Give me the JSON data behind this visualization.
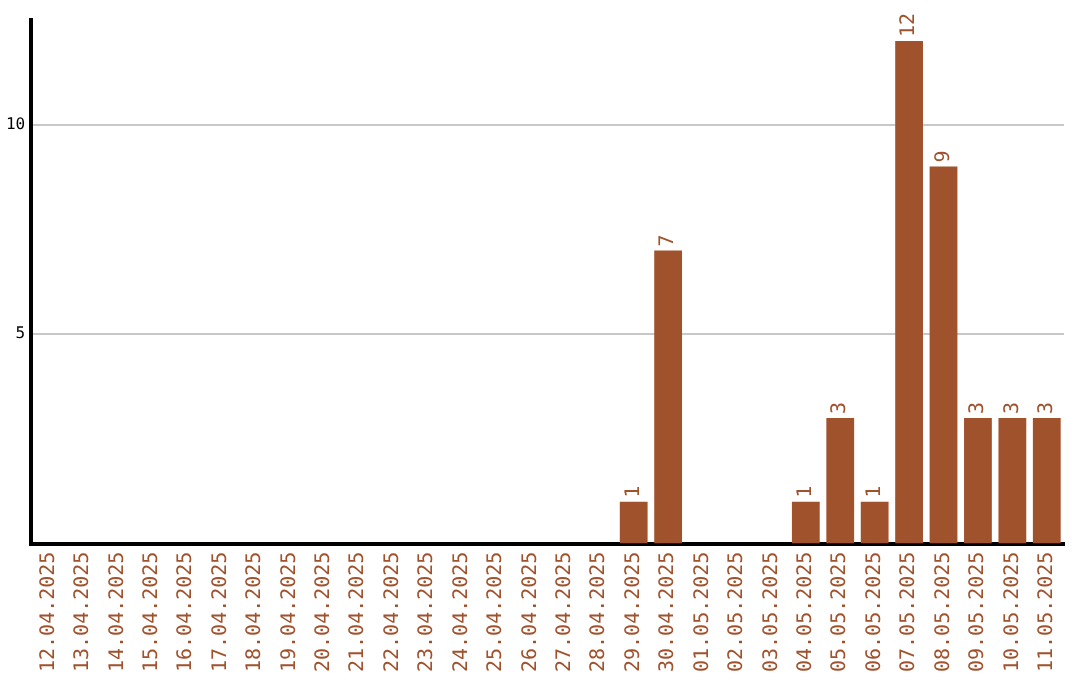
{
  "chart_data": {
    "type": "bar",
    "categories": [
      "12.04.2025",
      "13.04.2025",
      "14.04.2025",
      "15.04.2025",
      "16.04.2025",
      "17.04.2025",
      "18.04.2025",
      "19.04.2025",
      "20.04.2025",
      "21.04.2025",
      "22.04.2025",
      "23.04.2025",
      "24.04.2025",
      "25.04.2025",
      "26.04.2025",
      "27.04.2025",
      "28.04.2025",
      "29.04.2025",
      "30.04.2025",
      "01.05.2025",
      "02.05.2025",
      "03.05.2025",
      "04.05.2025",
      "05.05.2025",
      "06.05.2025",
      "07.05.2025",
      "08.05.2025",
      "09.05.2025",
      "10.05.2025",
      "11.05.2025"
    ],
    "values": [
      0,
      0,
      0,
      0,
      0,
      0,
      0,
      0,
      0,
      0,
      0,
      0,
      0,
      0,
      0,
      0,
      0,
      1,
      7,
      0,
      0,
      0,
      1,
      3,
      1,
      12,
      9,
      3,
      3,
      3
    ],
    "value_labels": [
      null,
      null,
      null,
      null,
      null,
      null,
      null,
      null,
      null,
      null,
      null,
      null,
      null,
      null,
      null,
      null,
      null,
      "1",
      "7",
      null,
      null,
      null,
      "1",
      "3",
      "1",
      "12",
      "9",
      "3",
      "3",
      "3"
    ],
    "color": "#a0522d",
    "ylim": [
      0,
      12.5
    ],
    "yticks": [
      5,
      10
    ],
    "grid": "y",
    "legend": false
  }
}
